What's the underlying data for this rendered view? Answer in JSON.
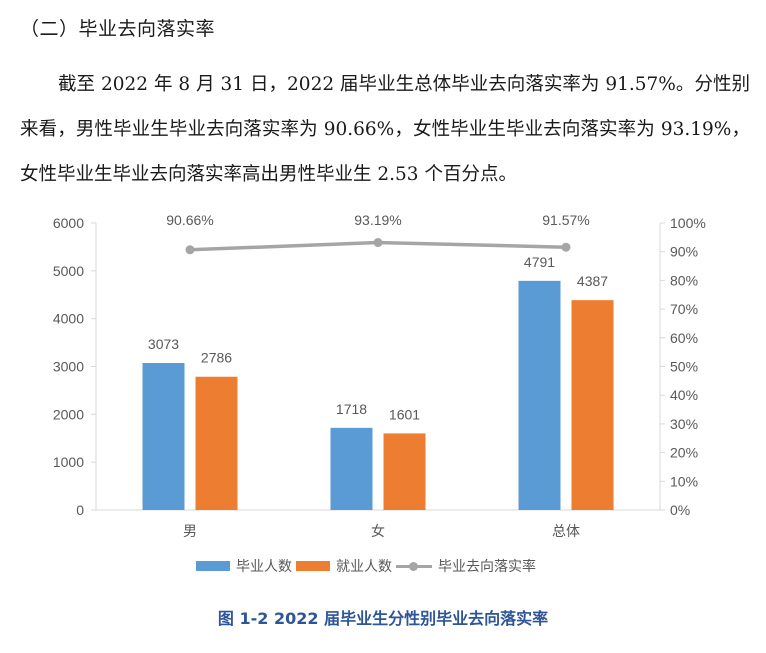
{
  "section": {
    "title": "（二）毕业去向落实率"
  },
  "paragraph": "截至 2022 年 8 月 31 日，2022 届毕业生总体毕业去向落实率为 91.57%。分性别来看，男性毕业生毕业去向落实率为 90.66%，女性毕业生毕业去向落实率为 93.19%，女性毕业生毕业去向落实率高出男性毕业生 2.53 个百分点。",
  "colors": {
    "graduates": "#5b9bd5",
    "employed": "#ed7d31",
    "rate": "#a5a5a5",
    "caption": "#2e5597",
    "axis_text": "#595959"
  },
  "chart_data": {
    "type": "bar",
    "title": "图 1-2 2022 届毕业生分性别毕业去向落实率",
    "categories": [
      "男",
      "女",
      "总体"
    ],
    "series": [
      {
        "name": "毕业人数",
        "type": "bar",
        "axis": "left",
        "values": [
          3073,
          1718,
          4791
        ],
        "labels": [
          "3073",
          "1718",
          "4791"
        ]
      },
      {
        "name": "就业人数",
        "type": "bar",
        "axis": "left",
        "values": [
          2786,
          1601,
          4387
        ],
        "labels": [
          "2786",
          "1601",
          "4387"
        ]
      },
      {
        "name": "毕业去向落实率",
        "type": "line",
        "axis": "right",
        "values": [
          90.66,
          93.19,
          91.57
        ],
        "labels": [
          "90.66%",
          "93.19%",
          "91.57%"
        ]
      }
    ],
    "left_axis": {
      "ylim": [
        0,
        6000
      ],
      "ticks": [
        "0",
        "1000",
        "2000",
        "3000",
        "4000",
        "5000",
        "6000"
      ]
    },
    "right_axis": {
      "ylim": [
        0,
        100
      ],
      "ticks": [
        "0%",
        "10%",
        "20%",
        "30%",
        "40%",
        "50%",
        "60%",
        "70%",
        "80%",
        "90%",
        "100%"
      ]
    },
    "xlabel": "",
    "ylabel": "",
    "grid": false,
    "legend_position": "bottom"
  },
  "legend": {
    "items": [
      "毕业人数",
      "就业人数",
      "毕业去向落实率"
    ]
  },
  "caption": "图 1-2 2022 届毕业生分性别毕业去向落实率"
}
